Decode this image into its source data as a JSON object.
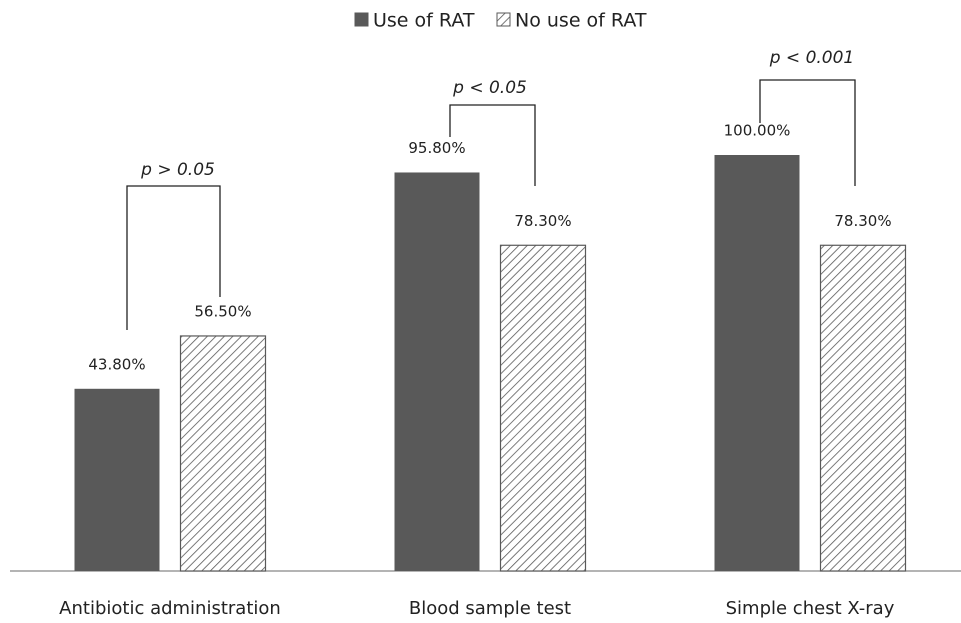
{
  "chart_data": {
    "type": "bar",
    "categories": [
      "Antibiotic administration",
      "Blood sample test",
      "Simple chest X-ray"
    ],
    "series": [
      {
        "name": "Use of RAT",
        "color": "#595959",
        "values": [
          43.8,
          95.8,
          100
        ],
        "value_labels": [
          "43.80%",
          "95.80%",
          "100.00%"
        ]
      },
      {
        "name": "No use of RAT",
        "color": "#595959",
        "pattern": "hatch",
        "values": [
          56.5,
          78.3,
          78.3
        ],
        "value_labels": [
          "56.50%",
          "78.30%",
          "78.30%"
        ]
      }
    ],
    "annotations": [
      "p > 0.05",
      "p < 0.05",
      "p < 0.001"
    ],
    "legend": "top"
  }
}
